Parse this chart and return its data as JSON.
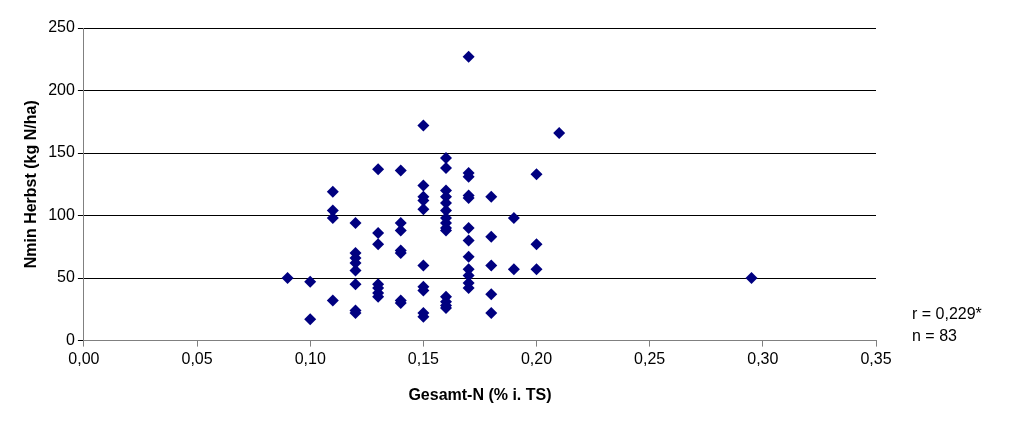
{
  "chart_data": {
    "type": "scatter",
    "xlabel": "Gesamt-N (% i. TS)",
    "ylabel": "Nmin Herbst (kg N/ha)",
    "x": [
      0.09,
      0.1,
      0.1,
      0.11,
      0.11,
      0.11,
      0.11,
      0.12,
      0.12,
      0.12,
      0.12,
      0.12,
      0.12,
      0.12,
      0.12,
      0.13,
      0.13,
      0.13,
      0.13,
      0.13,
      0.13,
      0.13,
      0.14,
      0.14,
      0.14,
      0.14,
      0.14,
      0.14,
      0.14,
      0.15,
      0.15,
      0.15,
      0.15,
      0.15,
      0.15,
      0.15,
      0.15,
      0.15,
      0.15,
      0.16,
      0.16,
      0.16,
      0.16,
      0.16,
      0.16,
      0.16,
      0.16,
      0.16,
      0.16,
      0.16,
      0.16,
      0.16,
      0.16,
      0.17,
      0.17,
      0.17,
      0.17,
      0.17,
      0.17,
      0.17,
      0.17,
      0.17,
      0.17,
      0.17,
      0.17,
      0.18,
      0.18,
      0.18,
      0.18,
      0.18,
      0.19,
      0.19,
      0.2,
      0.2,
      0.2,
      0.21,
      0.295
    ],
    "values": [
      50,
      47,
      17,
      119,
      104,
      98,
      32,
      94,
      70,
      66,
      62,
      56,
      45,
      24,
      22,
      137,
      86,
      77,
      45,
      42,
      38,
      35,
      136,
      94,
      88,
      72,
      70,
      32,
      30,
      172,
      124,
      115,
      112,
      105,
      60,
      43,
      40,
      22,
      19,
      146,
      138,
      120,
      115,
      110,
      104,
      98,
      94,
      90,
      88,
      35,
      31,
      28,
      26,
      227,
      134,
      131,
      116,
      114,
      90,
      80,
      67,
      57,
      52,
      46,
      42,
      115,
      83,
      60,
      37,
      22,
      98,
      57,
      133,
      77,
      57,
      166,
      50
    ],
    "color": "#000080",
    "marker": "diamond",
    "grid": "y",
    "xlim": [
      0,
      0.35
    ],
    "xticks": [
      {
        "value": 0,
        "label": "0,00"
      },
      {
        "value": 0.05,
        "label": "0,05"
      },
      {
        "value": 0.1,
        "label": "0,10"
      },
      {
        "value": 0.15,
        "label": "0,15"
      },
      {
        "value": 0.2,
        "label": "0,20"
      },
      {
        "value": 0.25,
        "label": "0,25"
      },
      {
        "value": 0.3,
        "label": "0,30"
      },
      {
        "value": 0.35,
        "label": "0,35"
      }
    ],
    "ylim": [
      0,
      250
    ],
    "yticks": [
      0,
      50,
      100,
      150,
      200,
      250
    ],
    "annotations": [
      "r = 0,229*",
      "n = 83"
    ],
    "legend": false
  }
}
